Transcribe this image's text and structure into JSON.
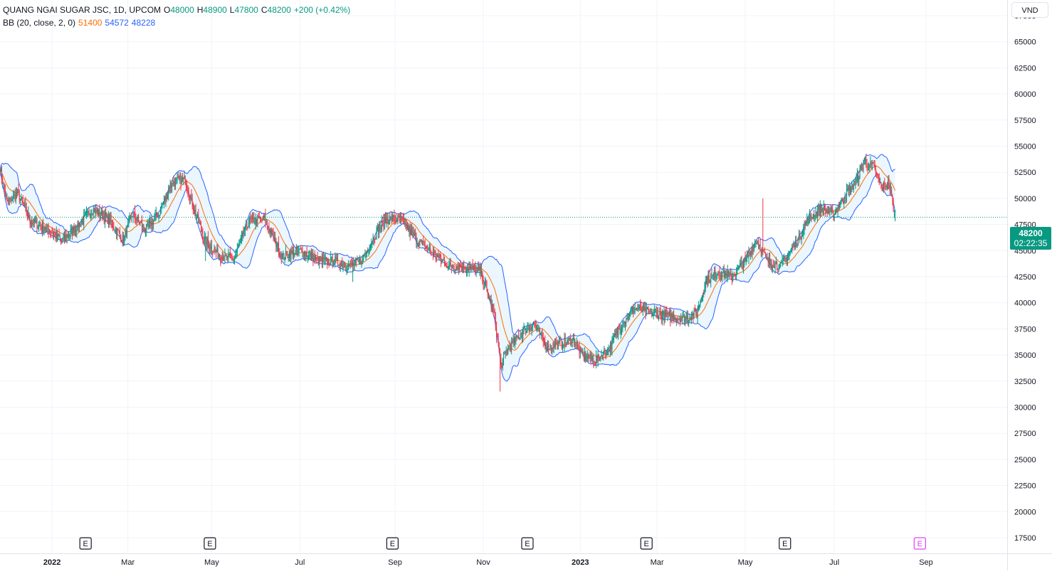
{
  "header": {
    "symbol": "QUANG NGAI SUGAR JSC, 1D, UPCOM",
    "open_label": "O",
    "open": "48000",
    "high_label": "H",
    "high": "48900",
    "low_label": "L",
    "low": "47800",
    "close_label": "C",
    "close": "48200",
    "change": "+200 (+0.42%)",
    "indicator": "BB (20, close, 2, 0)",
    "bb_basis": "51400",
    "bb_upper": "54572",
    "bb_lower": "48228"
  },
  "currency": "VND",
  "last_price": {
    "value": "48200",
    "countdown": "02:22:35"
  },
  "colors": {
    "up": "#089981",
    "down": "#f23645",
    "basis": "#ff6d00",
    "band": "#2962ff",
    "band_fill": "#e3f2fd",
    "grid": "#f0f3fa",
    "earnings_future": "#e040fb"
  },
  "earnings_marker": "E",
  "chart_data": {
    "type": "candlestick",
    "title": "QUANG NGAI SUGAR JSC, 1D, UPCOM",
    "ylim": [
      16000,
      69000
    ],
    "y_ticks": [
      17500,
      20000,
      22500,
      25000,
      27500,
      30000,
      32500,
      35000,
      37500,
      40000,
      42500,
      45000,
      47500,
      50000,
      52500,
      55000,
      57500,
      60000,
      62500,
      65000,
      67500
    ],
    "x_ticks": [
      {
        "label": "2022",
        "t": 59,
        "bold": true
      },
      {
        "label": "Mar",
        "t": 145
      },
      {
        "label": "May",
        "t": 240
      },
      {
        "label": "Jul",
        "t": 340
      },
      {
        "label": "Sep",
        "t": 448
      },
      {
        "label": "Nov",
        "t": 548
      },
      {
        "label": "2023",
        "t": 658,
        "bold": true
      },
      {
        "label": "Mar",
        "t": 745
      },
      {
        "label": "May",
        "t": 845
      },
      {
        "label": "Jul",
        "t": 946
      },
      {
        "label": "Sep",
        "t": 1050
      }
    ],
    "x_range": [
      0,
      1142
    ],
    "earnings_t": [
      97,
      238,
      445,
      598,
      733,
      890
    ],
    "earnings_future_t": [
      1043
    ],
    "price_path": [
      [
        0,
        53000
      ],
      [
        8,
        49500
      ],
      [
        20,
        50500
      ],
      [
        35,
        47800
      ],
      [
        55,
        47000
      ],
      [
        70,
        46000
      ],
      [
        90,
        47500
      ],
      [
        105,
        49000
      ],
      [
        125,
        47800
      ],
      [
        140,
        46000
      ],
      [
        150,
        48500
      ],
      [
        165,
        47000
      ],
      [
        180,
        48500
      ],
      [
        195,
        51500
      ],
      [
        210,
        51800
      ],
      [
        222,
        48500
      ],
      [
        232,
        46000
      ],
      [
        250,
        44500
      ],
      [
        265,
        44200
      ],
      [
        282,
        47800
      ],
      [
        300,
        48000
      ],
      [
        320,
        44500
      ],
      [
        340,
        45000
      ],
      [
        360,
        44000
      ],
      [
        380,
        44000
      ],
      [
        395,
        43500
      ],
      [
        410,
        44000
      ],
      [
        425,
        46500
      ],
      [
        438,
        48000
      ],
      [
        455,
        48000
      ],
      [
        465,
        46800
      ],
      [
        480,
        45500
      ],
      [
        495,
        44500
      ],
      [
        510,
        43500
      ],
      [
        525,
        43500
      ],
      [
        545,
        43000
      ],
      [
        560,
        39000
      ],
      [
        568,
        34000
      ],
      [
        575,
        35500
      ],
      [
        590,
        37000
      ],
      [
        605,
        38000
      ],
      [
        620,
        35800
      ],
      [
        635,
        36000
      ],
      [
        650,
        36500
      ],
      [
        660,
        35000
      ],
      [
        675,
        34500
      ],
      [
        690,
        35500
      ],
      [
        705,
        38000
      ],
      [
        720,
        39500
      ],
      [
        740,
        39000
      ],
      [
        755,
        38800
      ],
      [
        775,
        38500
      ],
      [
        790,
        39000
      ],
      [
        800,
        42000
      ],
      [
        815,
        43000
      ],
      [
        830,
        42500
      ],
      [
        845,
        44000
      ],
      [
        858,
        46000
      ],
      [
        870,
        44000
      ],
      [
        885,
        43500
      ],
      [
        905,
        46000
      ],
      [
        915,
        47800
      ],
      [
        930,
        49000
      ],
      [
        945,
        48500
      ],
      [
        960,
        50500
      ],
      [
        970,
        51500
      ],
      [
        980,
        53500
      ],
      [
        990,
        53000
      ],
      [
        1000,
        51000
      ],
      [
        1008,
        51500
      ],
      [
        1015,
        48200
      ]
    ],
    "series": [
      {
        "name": "BB (20, close, 2, 0)",
        "type": "bollinger",
        "length": 20,
        "mult": 2
      }
    ],
    "spikes": [
      {
        "t": 233,
        "low": 44000
      },
      {
        "t": 400,
        "low": 42000
      },
      {
        "t": 567,
        "low": 31500
      },
      {
        "t": 865,
        "high": 50000
      }
    ]
  }
}
